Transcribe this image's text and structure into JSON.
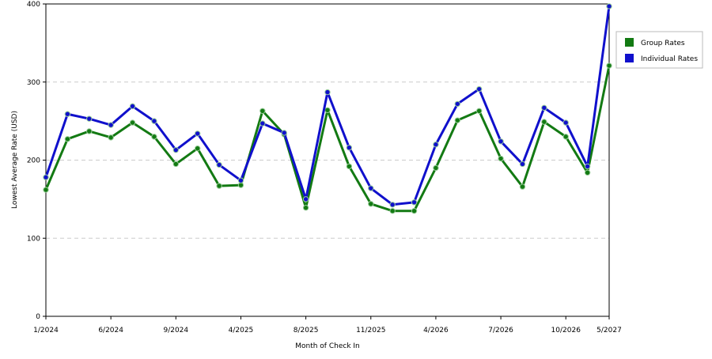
{
  "chart_data": {
    "type": "line",
    "x_label": "Month of Check In",
    "y_label": "Lowest Average Rate (USD)",
    "categories": [
      "1/2024",
      null,
      null,
      "6/2024",
      null,
      null,
      "9/2024",
      null,
      null,
      "4/2025",
      null,
      null,
      "8/2025",
      null,
      null,
      "11/2025",
      null,
      null,
      "4/2026",
      null,
      null,
      "7/2026",
      null,
      null,
      "10/2026",
      null,
      "5/2027"
    ],
    "series": [
      {
        "name": "Group Rates",
        "color": "#137a13",
        "values": [
          162,
          227,
          237,
          229,
          248,
          230,
          195,
          215,
          167,
          168,
          263,
          233,
          139,
          264,
          192,
          144,
          135,
          135,
          190,
          251,
          263,
          202,
          166,
          249,
          230,
          184,
          321
        ]
      },
      {
        "name": "Individual Rates",
        "color": "#1010cc",
        "values": [
          178,
          259,
          253,
          245,
          269,
          250,
          213,
          234,
          194,
          174,
          247,
          235,
          150,
          287,
          216,
          164,
          143,
          146,
          220,
          272,
          291,
          224,
          195,
          267,
          248,
          192,
          397
        ]
      }
    ],
    "ylim": [
      0,
      400
    ],
    "yticks": [
      0,
      100,
      200,
      300,
      400
    ],
    "grid": true,
    "legend": "right"
  }
}
